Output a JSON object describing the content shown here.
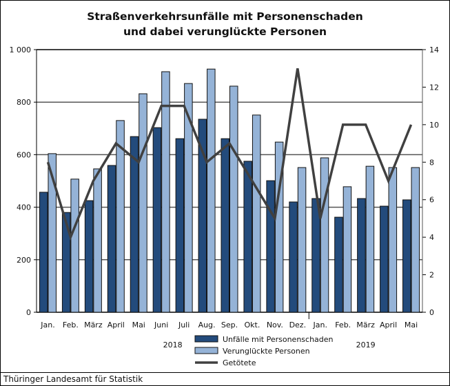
{
  "chart_data": {
    "type": "bar+line",
    "title": [
      "Straßenverkehrsunfälle mit Personenschaden",
      "und dabei verunglückte Personen"
    ],
    "categories": [
      "Jan.",
      "Feb.",
      "März",
      "April",
      "Mai",
      "Juni",
      "Juli",
      "Aug.",
      "Sep.",
      "Okt.",
      "Nov.",
      "Dez.",
      "Jan.",
      "Feb.",
      "März",
      "April",
      "Mai"
    ],
    "years": [
      {
        "label": "2018",
        "span": [
          0,
          11
        ]
      },
      {
        "label": "2019",
        "span": [
          12,
          16
        ]
      }
    ],
    "y_left": {
      "range": [
        0,
        1000
      ],
      "ticks": [
        "0",
        "200",
        "400",
        "600",
        "800",
        "1 000"
      ]
    },
    "y_right": {
      "range": [
        0,
        14
      ],
      "ticks": [
        "0",
        "2",
        "4",
        "6",
        "8",
        "10",
        "12",
        "14"
      ]
    },
    "grid": true,
    "legend_position": "bottom",
    "series": [
      {
        "name": "Unfälle mit Personenschaden",
        "type": "bar",
        "axis": "left",
        "color": "#234b7c",
        "values": [
          457,
          380,
          425,
          559,
          669,
          703,
          661,
          735,
          661,
          575,
          501,
          420,
          433,
          362,
          433,
          404,
          428
        ]
      },
      {
        "name": "Verunglückte Personen",
        "type": "bar",
        "axis": "left",
        "color": "#95b3d7",
        "values": [
          604,
          507,
          546,
          730,
          832,
          916,
          871,
          926,
          861,
          751,
          648,
          551,
          588,
          478,
          556,
          551,
          551
        ]
      },
      {
        "name": "Getötete",
        "type": "line",
        "axis": "right",
        "color": "#404040",
        "values": [
          8,
          4,
          7,
          9,
          8,
          11,
          11,
          8,
          9,
          7,
          5,
          13,
          5,
          10,
          10,
          7,
          10
        ]
      }
    ]
  },
  "footer": "Thüringer Landesamt für Statistik"
}
